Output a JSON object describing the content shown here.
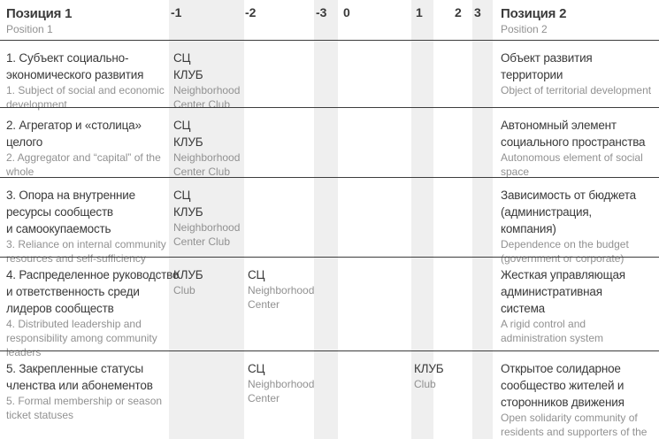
{
  "colors": {
    "stripe": "#efefef",
    "rule": "#3d3d3d",
    "text_dark": "#3a3a3a",
    "text_gray": "#919191",
    "background": "#ffffff"
  },
  "table": {
    "header": {
      "position1": {
        "ru": "Позиция 1",
        "en": "Position 1"
      },
      "position2": {
        "ru": "Позиция 2",
        "en": "Position 2"
      },
      "scale": [
        "-1",
        "-2",
        "-3",
        "0",
        "1",
        "2",
        "3"
      ]
    },
    "rows": [
      {
        "position1": {
          "ru": "1. Субъект социально-\nэкономического развития",
          "en": "1. Subject of social and economic\ndevelopment"
        },
        "marks": [
          {
            "column": "-1",
            "ru": "СЦ\nКЛУБ",
            "en": "Neighborhood\nCenter Club"
          }
        ],
        "position2": {
          "ru": "Объект развития\nтерритории",
          "en": "Object of territorial development"
        }
      },
      {
        "position1": {
          "ru": "2. Агрегатор и «столица»\nцелого",
          "en": "2. Aggregator and “capital” of the\nwhole"
        },
        "marks": [
          {
            "column": "-1",
            "ru": "СЦ\nКЛУБ",
            "en": "Neighborhood\nCenter Club"
          }
        ],
        "position2": {
          "ru": "Автономный элемент\nсоциального пространства",
          "en": "Autonomous element of social\nspace"
        }
      },
      {
        "position1": {
          "ru": "3. Опора на внутренние\nресурсы сообществ\nи самоокупаемость",
          "en": "3. Reliance on internal community\nresources and self-sufficiency"
        },
        "marks": [
          {
            "column": "-1",
            "ru": "СЦ\nКЛУБ",
            "en": "Neighborhood\nCenter Club"
          }
        ],
        "position2": {
          "ru": "Зависимость от бюджета\n(администрация,\nкомпания)",
          "en": "Dependence on the budget\n(government or corporate)"
        }
      },
      {
        "position1": {
          "ru": "4. Распределенное руководство\nи ответственность среди\nлидеров сообществ",
          "en": "4. Distributed leadership and\nresponsibility among community\nleaders"
        },
        "marks": [
          {
            "column": "-1",
            "ru": "КЛУБ",
            "en": "Club"
          },
          {
            "column": "-2",
            "ru": "СЦ",
            "en": "Neighborhood\nCenter"
          }
        ],
        "position2": {
          "ru": "Жесткая управляющая\nадминистративная\nсистема",
          "en": "A rigid control and\nadministration system"
        }
      },
      {
        "position1": {
          "ru": "5. Закрепленные статусы\nчленства или абонементов",
          "en": "5. Formal membership or season\nticket statuses"
        },
        "marks": [
          {
            "column": "-2",
            "ru": "СЦ",
            "en": "Neighborhood\nCenter"
          },
          {
            "column": "1",
            "ru": "КЛУБ",
            "en": "Club"
          }
        ],
        "position2": {
          "ru": "Открытое солидарное\nсообщество жителей и\nсторонников движения",
          "en": "Open solidarity community of\nresidents and supporters of the\nmovement"
        }
      }
    ]
  }
}
